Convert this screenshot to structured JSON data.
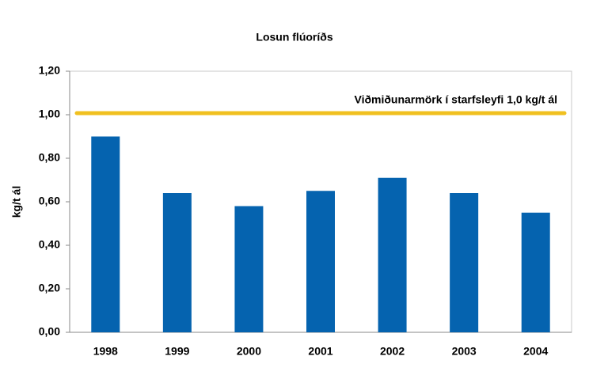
{
  "chart_data": {
    "type": "bar",
    "title": "Losun flúoríðs",
    "y_label": "kg/t ál",
    "categories": [
      "1998",
      "1999",
      "2000",
      "2001",
      "2002",
      "2003",
      "2004"
    ],
    "values": [
      0.9,
      0.64,
      0.58,
      0.65,
      0.71,
      0.64,
      0.55
    ],
    "color": "#0563af",
    "ylim": [
      0,
      1.2
    ],
    "yticks": [
      {
        "value": 0,
        "label": "0,00"
      },
      {
        "value": 0.2,
        "label": "0,20"
      },
      {
        "value": 0.4,
        "label": "0,40"
      },
      {
        "value": 0.6,
        "label": "0,60"
      },
      {
        "value": 0.8,
        "label": "0,80"
      },
      {
        "value": 1.0,
        "label": "1,00"
      },
      {
        "value": 1.2,
        "label": "1,20"
      }
    ],
    "grid": false,
    "reference": {
      "value": 1.0,
      "label": "Viðmiðunarmörk í starfsleyfi 1,0 kg/t ál",
      "color": "#f0c020"
    }
  }
}
